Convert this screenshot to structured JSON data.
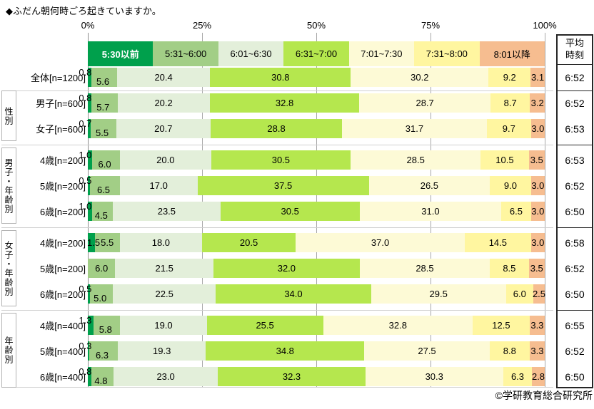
{
  "title": "◆ふだん朝何時ごろ起きていますか。",
  "copyright": "©学研教育総合研究所",
  "avg_header_lines": [
    "平均",
    "時刻"
  ],
  "axis": {
    "tick_labels": [
      "0%",
      "25%",
      "50%",
      "75%",
      "100%"
    ],
    "tick_values": [
      0,
      25,
      50,
      75,
      100
    ]
  },
  "legend": {
    "items": [
      {
        "label": "5:30以前",
        "color": "#00a04c",
        "text_color": "#ffffff",
        "bold": true
      },
      {
        "label": "5:31~6:00",
        "color": "#a2ce86",
        "text_color": "#000000",
        "bold": false
      },
      {
        "label": "6:01~6:30",
        "color": "#e3efda",
        "text_color": "#000000",
        "bold": false
      },
      {
        "label": "6:31~7:00",
        "color": "#b5e74e",
        "text_color": "#000000",
        "bold": false
      },
      {
        "label": "7:01~7:30",
        "color": "#fdfad6",
        "text_color": "#000000",
        "bold": false
      },
      {
        "label": "7:31~8:00",
        "color": "#fff6a0",
        "text_color": "#000000",
        "bold": false
      },
      {
        "label": "8:01以降",
        "color": "#f6bd90",
        "text_color": "#000000",
        "bold": false
      }
    ]
  },
  "chart_data": {
    "type": "bar",
    "variant": "stacked-horizontal-100pct",
    "unit": "%",
    "xlim": [
      0,
      100
    ],
    "grid": "ticks at 25/50/75/100",
    "legend_position": "top",
    "categories": [
      "5:30以前",
      "5:31~6:00",
      "6:01~6:30",
      "6:31~7:00",
      "7:01~7:30",
      "7:31~8:00",
      "8:01以降"
    ],
    "avg_column_header": "平均時刻",
    "groups": [
      {
        "group_label": "",
        "rows": [
          {
            "label": "全体[n=1200]",
            "values": [
              0.8,
              5.6,
              20.4,
              30.8,
              30.2,
              9.2,
              3.1
            ],
            "avg": "6:52"
          }
        ]
      },
      {
        "group_label": "性別",
        "rows": [
          {
            "label": "男子[n=600]",
            "values": [
              0.8,
              5.7,
              20.2,
              32.8,
              28.7,
              8.7,
              3.2
            ],
            "avg": "6:52"
          },
          {
            "label": "女子[n=600]",
            "values": [
              0.7,
              5.5,
              20.7,
              28.8,
              31.7,
              9.7,
              3.0
            ],
            "avg": "6:53"
          }
        ]
      },
      {
        "group_label": "男子・年齢別",
        "rows": [
          {
            "label": "4歳[n=200]",
            "values": [
              1.0,
              6.0,
              20.0,
              30.5,
              28.5,
              10.5,
              3.5
            ],
            "avg": "6:53"
          },
          {
            "label": "5歳[n=200]",
            "values": [
              0.5,
              6.5,
              17.0,
              37.5,
              26.5,
              9.0,
              3.0
            ],
            "avg": "6:52"
          },
          {
            "label": "6歳[n=200]",
            "values": [
              1.0,
              4.5,
              23.5,
              30.5,
              31.0,
              6.5,
              3.0
            ],
            "avg": "6:50"
          }
        ]
      },
      {
        "group_label": "女子・年齢別",
        "rows": [
          {
            "label": "4歳[n=200]",
            "values": [
              1.5,
              5.5,
              18.0,
              20.5,
              37.0,
              14.5,
              3.0
            ],
            "avg": "6:58"
          },
          {
            "label": "5歳[n=200]",
            "values": [
              0.0,
              6.0,
              21.5,
              32.0,
              28.5,
              8.5,
              3.5
            ],
            "avg": "6:52"
          },
          {
            "label": "6歳[n=200]",
            "values": [
              0.5,
              5.0,
              22.5,
              34.0,
              29.5,
              6.0,
              2.5
            ],
            "avg": "6:50"
          }
        ]
      },
      {
        "group_label": "年齢別",
        "rows": [
          {
            "label": "4歳[n=400]",
            "values": [
              1.3,
              5.8,
              19.0,
              25.5,
              32.8,
              12.5,
              3.3
            ],
            "avg": "6:55"
          },
          {
            "label": "5歳[n=400]",
            "values": [
              0.3,
              6.3,
              19.3,
              34.8,
              27.5,
              8.8,
              3.3
            ],
            "avg": "6:52"
          },
          {
            "label": "6歳[n=400]",
            "values": [
              0.8,
              4.8,
              23.0,
              32.3,
              30.3,
              6.3,
              2.8
            ],
            "avg": "6:50"
          }
        ]
      }
    ]
  }
}
